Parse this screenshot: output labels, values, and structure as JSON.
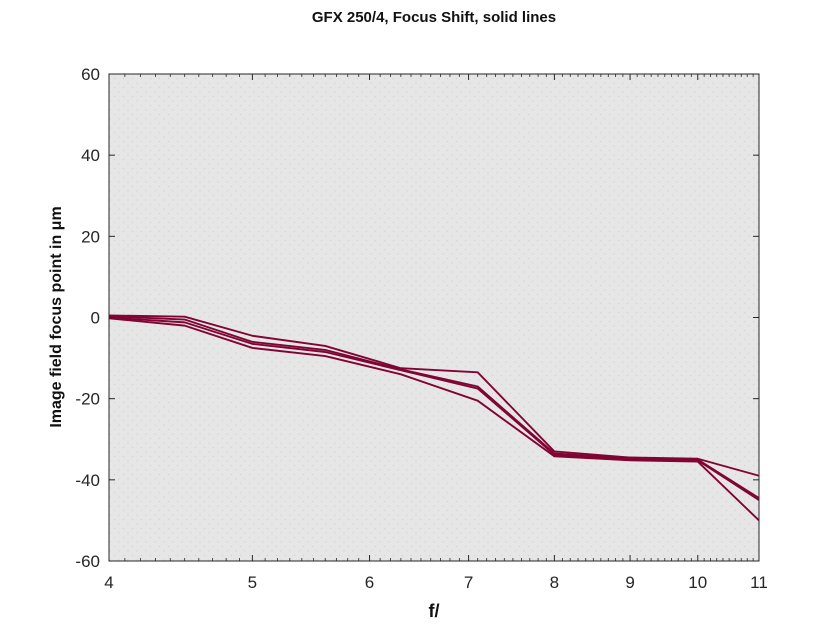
{
  "chart_data": {
    "type": "line",
    "title": "GFX 250/4, Focus Shift, solid lines",
    "xlabel": "f/",
    "ylabel": "Image field focus point in μm",
    "x_scale": "log",
    "xlim": [
      4,
      11
    ],
    "ylim": [
      -60,
      60
    ],
    "x_ticks": [
      4,
      5,
      6,
      7,
      8,
      9,
      10,
      11
    ],
    "y_ticks": [
      60,
      40,
      20,
      0,
      -20,
      -40,
      -60
    ],
    "series_color": "#800533",
    "background_color": "#e6e6e6",
    "grid": false,
    "x": [
      4,
      4.5,
      5,
      5.6,
      6.3,
      7.1,
      8,
      9,
      10,
      11
    ],
    "series": [
      {
        "values": [
          0.5,
          0.2,
          -4.5,
          -7.0,
          -12.5,
          -13.5,
          -33.0,
          -34.5,
          -34.8,
          -39.0
        ]
      },
      {
        "values": [
          0.3,
          -0.5,
          -6.0,
          -8.0,
          -12.8,
          -17.0,
          -33.5,
          -34.8,
          -35.0,
          -44.5
        ]
      },
      {
        "values": [
          0.0,
          -1.2,
          -6.5,
          -8.5,
          -13.0,
          -17.5,
          -33.8,
          -35.0,
          -35.2,
          -45.0
        ]
      },
      {
        "values": [
          -0.2,
          -2.0,
          -7.5,
          -9.5,
          -14.0,
          -20.5,
          -34.2,
          -35.2,
          -35.5,
          -50.0
        ]
      }
    ]
  }
}
